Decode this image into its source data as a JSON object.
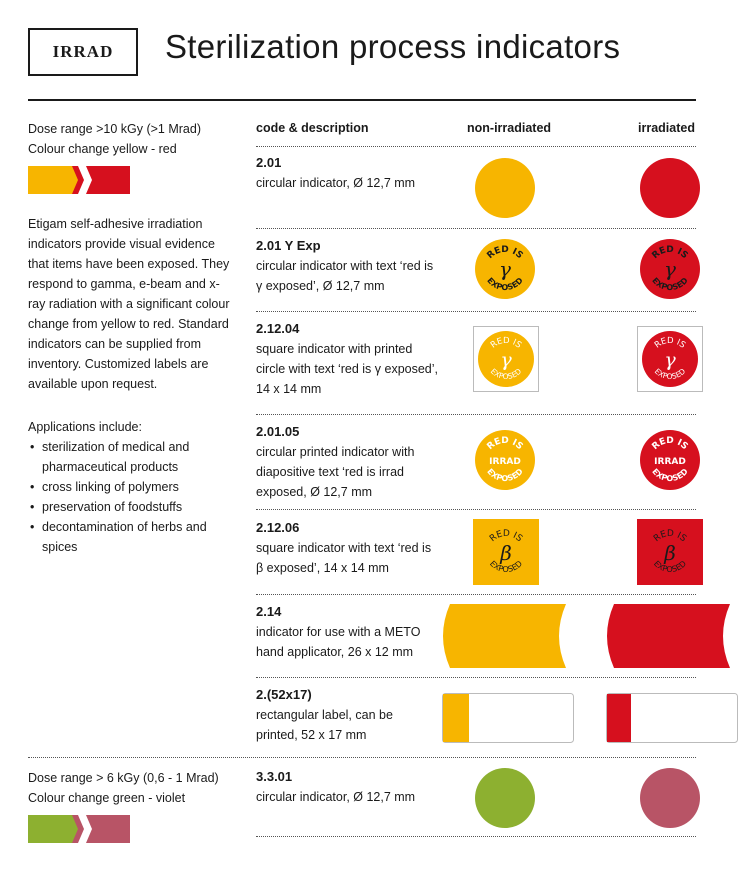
{
  "header": {
    "logo_text": "IRRAD",
    "title": "Sterilization process indicators"
  },
  "columns": {
    "code": "code & description",
    "non_irradiated": "non-irradiated",
    "irradiated": "irradiated"
  },
  "section1": {
    "dose": "Dose range >10 kGy  (>1 Mrad)",
    "change": "Colour change yellow - red",
    "description": "Etigam self-adhesive irradiation indicators provide visual evidence that items have been exposed. They respond to gamma, e-beam and x-ray radiation with a significant colour change from yellow to red. Standard indicators can be supplied from inventory. Customized labels are available upon request.",
    "applications_title": "Applications include:",
    "applications": [
      "sterilization of medical and pharmaceutical products",
      "cross linking of polymers",
      "preservation of foodstuffs",
      "decontamination of herbs and spices"
    ]
  },
  "section2": {
    "dose": "Dose range > 6 kGy (0,6 - 1 Mrad)",
    "change": "Colour change green - violet"
  },
  "label_text": {
    "red_is": "RED IS",
    "exposed": "EXPOSED",
    "gamma": "γ",
    "beta": "β",
    "irrad": "IRRAD"
  },
  "colors": {
    "yellow": "#f7b500",
    "red": "#d6101e",
    "green": "#8db030",
    "violet": "#b85466",
    "text": "#1a1a1a"
  },
  "rows": [
    {
      "code": "2.01",
      "desc_lines": [
        "circular indicator, Ø 12,7 mm"
      ]
    },
    {
      "code": "2.01 Y Exp",
      "desc_lines": [
        "circular indicator with text ‘red is",
        "γ exposed’, Ø 12,7 mm"
      ]
    },
    {
      "code": "2.12.04",
      "desc_lines": [
        "square indicator with printed",
        "circle with text ‘red is γ exposed’,",
        "14 x 14 mm"
      ]
    },
    {
      "code": "2.01.05",
      "desc_lines": [
        "circular printed indicator with",
        "diapositive text ‘red is irrad",
        "exposed, Ø 12,7 mm"
      ]
    },
    {
      "code": "2.12.06",
      "desc_lines": [
        "square indicator with text ‘red is",
        "β exposed’, 14 x 14 mm"
      ]
    },
    {
      "code": "2.14",
      "desc_lines": [
        "indicator for use with a METO",
        "hand applicator, 26 x 12 mm"
      ]
    },
    {
      "code": "2.(52x17)",
      "desc_lines": [
        "rectangular label, can be",
        "printed, 52 x 17 mm"
      ]
    },
    {
      "code": "3.3.01",
      "desc_lines": [
        "circular indicator, Ø 12,7 mm"
      ]
    }
  ]
}
